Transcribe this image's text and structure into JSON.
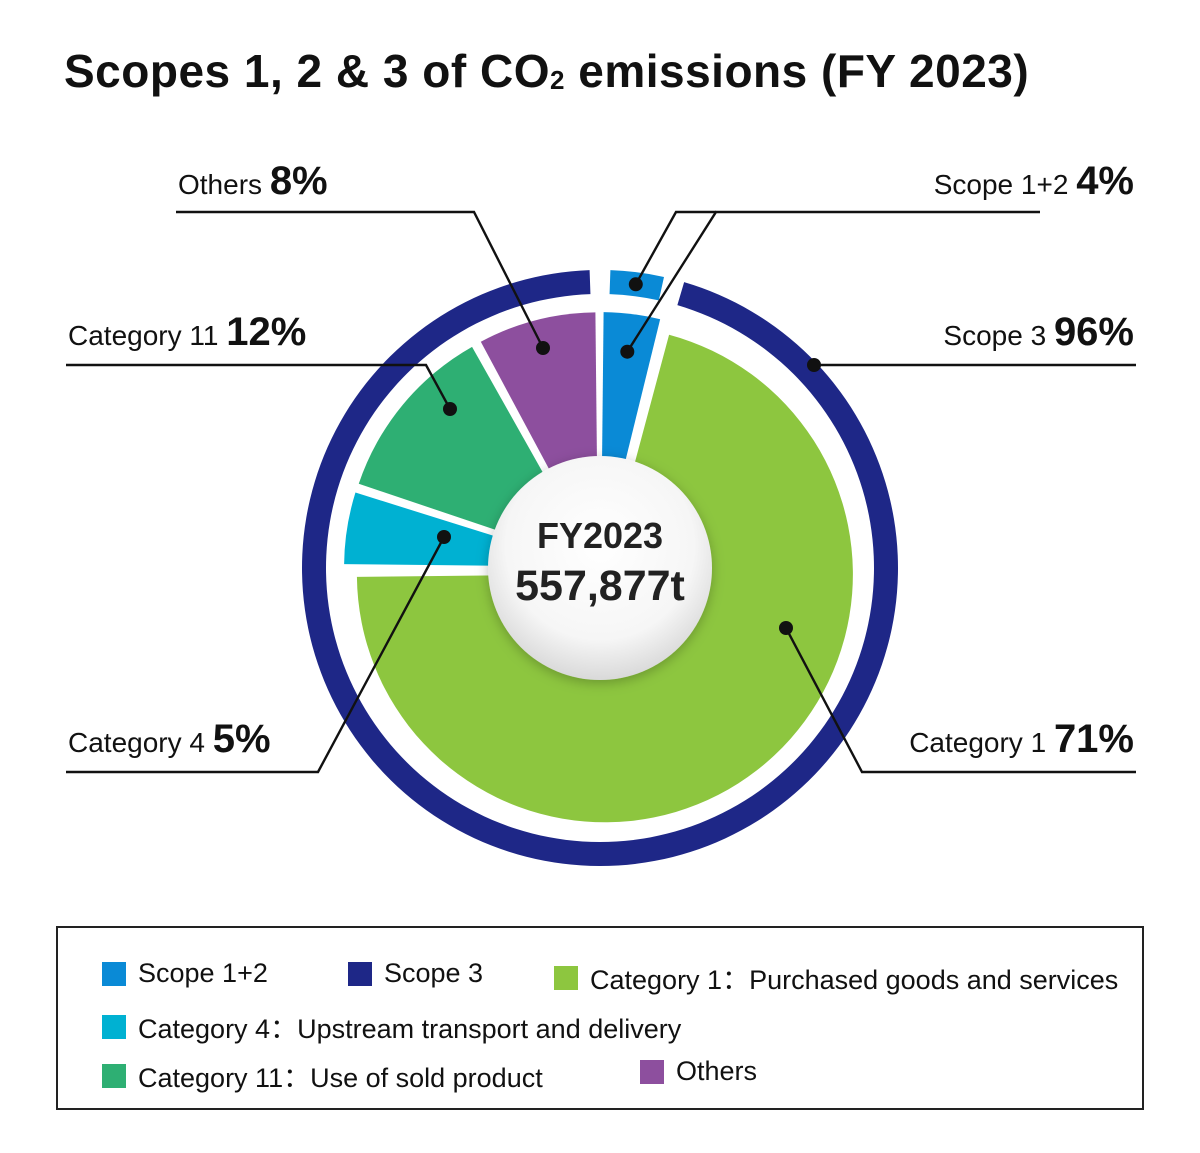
{
  "title": {
    "prefix": "Scopes 1, 2 & 3 of CO",
    "subscript": "2",
    "suffix": " emissions (FY 2023)"
  },
  "center": {
    "year": "FY2023",
    "total": "557,877t"
  },
  "chart_data": {
    "type": "pie",
    "outer_ring": [
      {
        "name": "Scope 1+2",
        "label": "Scope 1+2",
        "value_label": "4%",
        "value": 4,
        "color": "#0a8ad6"
      },
      {
        "name": "Scope 3",
        "label": "Scope 3",
        "value_label": "96%",
        "value": 96,
        "color": "#1e2787"
      }
    ],
    "inner_pie": [
      {
        "name": "Scope 1+2",
        "label": "Scope 1+2",
        "value_label": "4%",
        "value": 4,
        "color": "#0a8ad6"
      },
      {
        "name": "Category 1",
        "label": "Category 1",
        "value_label": "71%",
        "value": 71,
        "color": "#8dc63f"
      },
      {
        "name": "Category 4",
        "label": "Category 4",
        "value_label": "5%",
        "value": 5,
        "color": "#00b1d2"
      },
      {
        "name": "Category 11",
        "label": "Category 11",
        "value_label": "12%",
        "value": 12,
        "color": "#2eaf73"
      },
      {
        "name": "Others",
        "label": "Others",
        "value_label": "8%",
        "value": 8,
        "color": "#8d4f9e"
      }
    ],
    "total": "557,877t"
  },
  "legend": [
    {
      "label": "Scope 1+2",
      "color": "#0a8ad6"
    },
    {
      "label": "Scope 3",
      "color": "#1e2787"
    },
    {
      "label": "Category 1：Purchased goods and services",
      "color": "#8dc63f"
    },
    {
      "label": "Category 4：Upstream transport and delivery",
      "color": "#00b1d2"
    },
    {
      "label": "Category 11：Use of sold product",
      "color": "#2eaf73"
    },
    {
      "label": "Others",
      "color": "#8d4f9e"
    }
  ]
}
